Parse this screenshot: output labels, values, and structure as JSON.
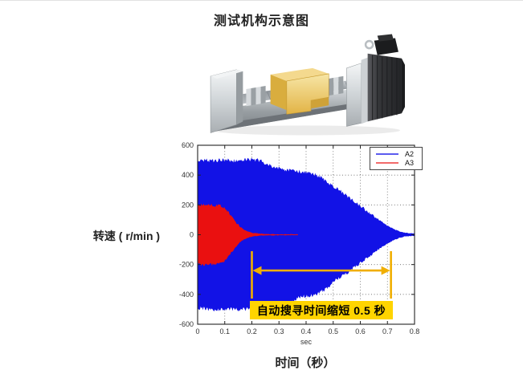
{
  "title": "测试机构示意图",
  "machine_icon": "ballscrew-linear-stage-with-servo-motor",
  "labels": {
    "ylabel": "转速 ( r/min )",
    "xlabel": "时间（秒）"
  },
  "chart_data": {
    "type": "area",
    "title": "",
    "xlabel": "sec",
    "ylabel": "转速 ( r/min )",
    "xlim": [
      0,
      0.8
    ],
    "ylim": [
      -600,
      600
    ],
    "xticks": [
      0,
      0.1,
      0.2,
      0.3,
      0.4,
      0.5,
      0.6,
      0.7,
      0.8
    ],
    "yticks": [
      -600,
      -400,
      -200,
      0,
      200,
      400,
      600
    ],
    "grid": "dotted",
    "legend": {
      "position": "top-right",
      "entries": [
        {
          "label": "A2",
          "color": "#5b5bef"
        },
        {
          "label": "A3",
          "color": "#f26a6a"
        }
      ]
    },
    "series": [
      {
        "name": "A2",
        "color": "#1212e6",
        "kind": "oscillation-envelope",
        "upper": [
          [
            0,
            492
          ],
          [
            0.03,
            500
          ],
          [
            0.06,
            495
          ],
          [
            0.1,
            505
          ],
          [
            0.13,
            495
          ],
          [
            0.17,
            500
          ],
          [
            0.2,
            505
          ],
          [
            0.23,
            498
          ],
          [
            0.26,
            470
          ],
          [
            0.29,
            448
          ],
          [
            0.32,
            435
          ],
          [
            0.36,
            428
          ],
          [
            0.4,
            415
          ],
          [
            0.43,
            405
          ],
          [
            0.46,
            380
          ],
          [
            0.5,
            325
          ],
          [
            0.54,
            275
          ],
          [
            0.58,
            220
          ],
          [
            0.62,
            165
          ],
          [
            0.66,
            110
          ],
          [
            0.7,
            60
          ],
          [
            0.73,
            32
          ],
          [
            0.76,
            14
          ],
          [
            0.8,
            8
          ]
        ],
        "lower": [
          [
            0,
            -490
          ],
          [
            0.04,
            -500
          ],
          [
            0.08,
            -505
          ],
          [
            0.12,
            -498
          ],
          [
            0.16,
            -502
          ],
          [
            0.2,
            -495
          ],
          [
            0.24,
            -505
          ],
          [
            0.28,
            -498
          ],
          [
            0.31,
            -488
          ],
          [
            0.34,
            -462
          ],
          [
            0.37,
            -420
          ],
          [
            0.41,
            -408
          ],
          [
            0.44,
            -400
          ],
          [
            0.47,
            -368
          ],
          [
            0.5,
            -318
          ],
          [
            0.54,
            -270
          ],
          [
            0.58,
            -218
          ],
          [
            0.62,
            -162
          ],
          [
            0.66,
            -108
          ],
          [
            0.7,
            -58
          ],
          [
            0.73,
            -30
          ],
          [
            0.76,
            -13
          ],
          [
            0.8,
            -7
          ]
        ]
      },
      {
        "name": "A3",
        "color": "#ea1010",
        "kind": "oscillation-envelope",
        "upper": [
          [
            0,
            195
          ],
          [
            0.02,
            200
          ],
          [
            0.05,
            198
          ],
          [
            0.08,
            195
          ],
          [
            0.1,
            180
          ],
          [
            0.12,
            135
          ],
          [
            0.14,
            85
          ],
          [
            0.16,
            48
          ],
          [
            0.18,
            24
          ],
          [
            0.2,
            13
          ],
          [
            0.23,
            7
          ],
          [
            0.27,
            4
          ],
          [
            0.31,
            3
          ],
          [
            0.37,
            3
          ]
        ],
        "lower": [
          [
            0,
            -195
          ],
          [
            0.02,
            -200
          ],
          [
            0.05,
            -198
          ],
          [
            0.08,
            -192
          ],
          [
            0.1,
            -178
          ],
          [
            0.12,
            -130
          ],
          [
            0.14,
            -82
          ],
          [
            0.16,
            -45
          ],
          [
            0.18,
            -22
          ],
          [
            0.2,
            -12
          ],
          [
            0.23,
            -6
          ],
          [
            0.27,
            -4
          ],
          [
            0.31,
            -3
          ],
          [
            0.37,
            -3
          ]
        ]
      }
    ],
    "annotation": {
      "label": "自动搜寻时间缩短 0.5 秒",
      "box_color": "#ffd400",
      "arrow_color": "#f0ae00",
      "arrow_x": [
        0.2,
        0.713
      ],
      "arrow_y": -240,
      "bar_y": [
        -110,
        -428
      ]
    }
  }
}
